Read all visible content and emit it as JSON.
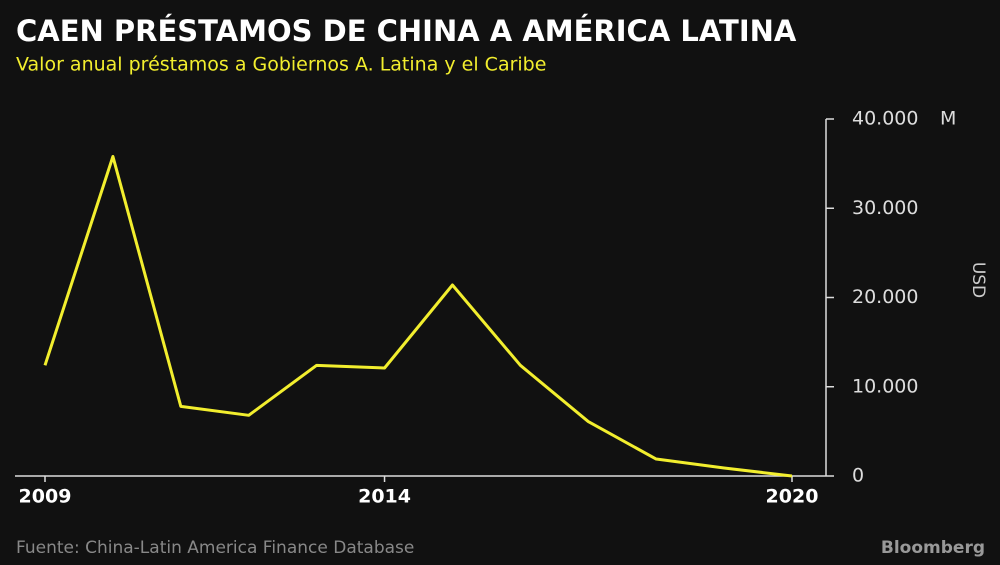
{
  "chart_data": {
    "type": "line",
    "title": "CAEN PRÉSTAMOS DE CHINA A AMÉRICA LATINA",
    "subtitle": "Valor anual préstamos a Gobiernos A. Latina y el Caribe",
    "y_label": "USD",
    "y_unit": "M",
    "source": "Fuente: China-Latin America Finance Database",
    "brand": "Bloomberg",
    "x": [
      2009,
      2010,
      2011,
      2012,
      2013,
      2014,
      2015,
      2016,
      2017,
      2018,
      2019,
      2020
    ],
    "xlim": [
      2009,
      2020
    ],
    "xticks": [
      2009,
      2014,
      2020
    ],
    "ylim": [
      0,
      40000
    ],
    "yticks": [
      0,
      {
        "value": 10000,
        "label": "10.000"
      },
      {
        "value": 20000,
        "label": "20.000"
      },
      {
        "value": 30000,
        "label": "30.000"
      },
      {
        "value": 40000,
        "label": "40.000"
      }
    ],
    "series": [
      {
        "color": "#f2ee2e",
        "values": [
          12400,
          35800,
          7800,
          6800,
          12400,
          12100,
          21400,
          12400,
          6100,
          1900,
          900,
          0
        ]
      }
    ]
  }
}
